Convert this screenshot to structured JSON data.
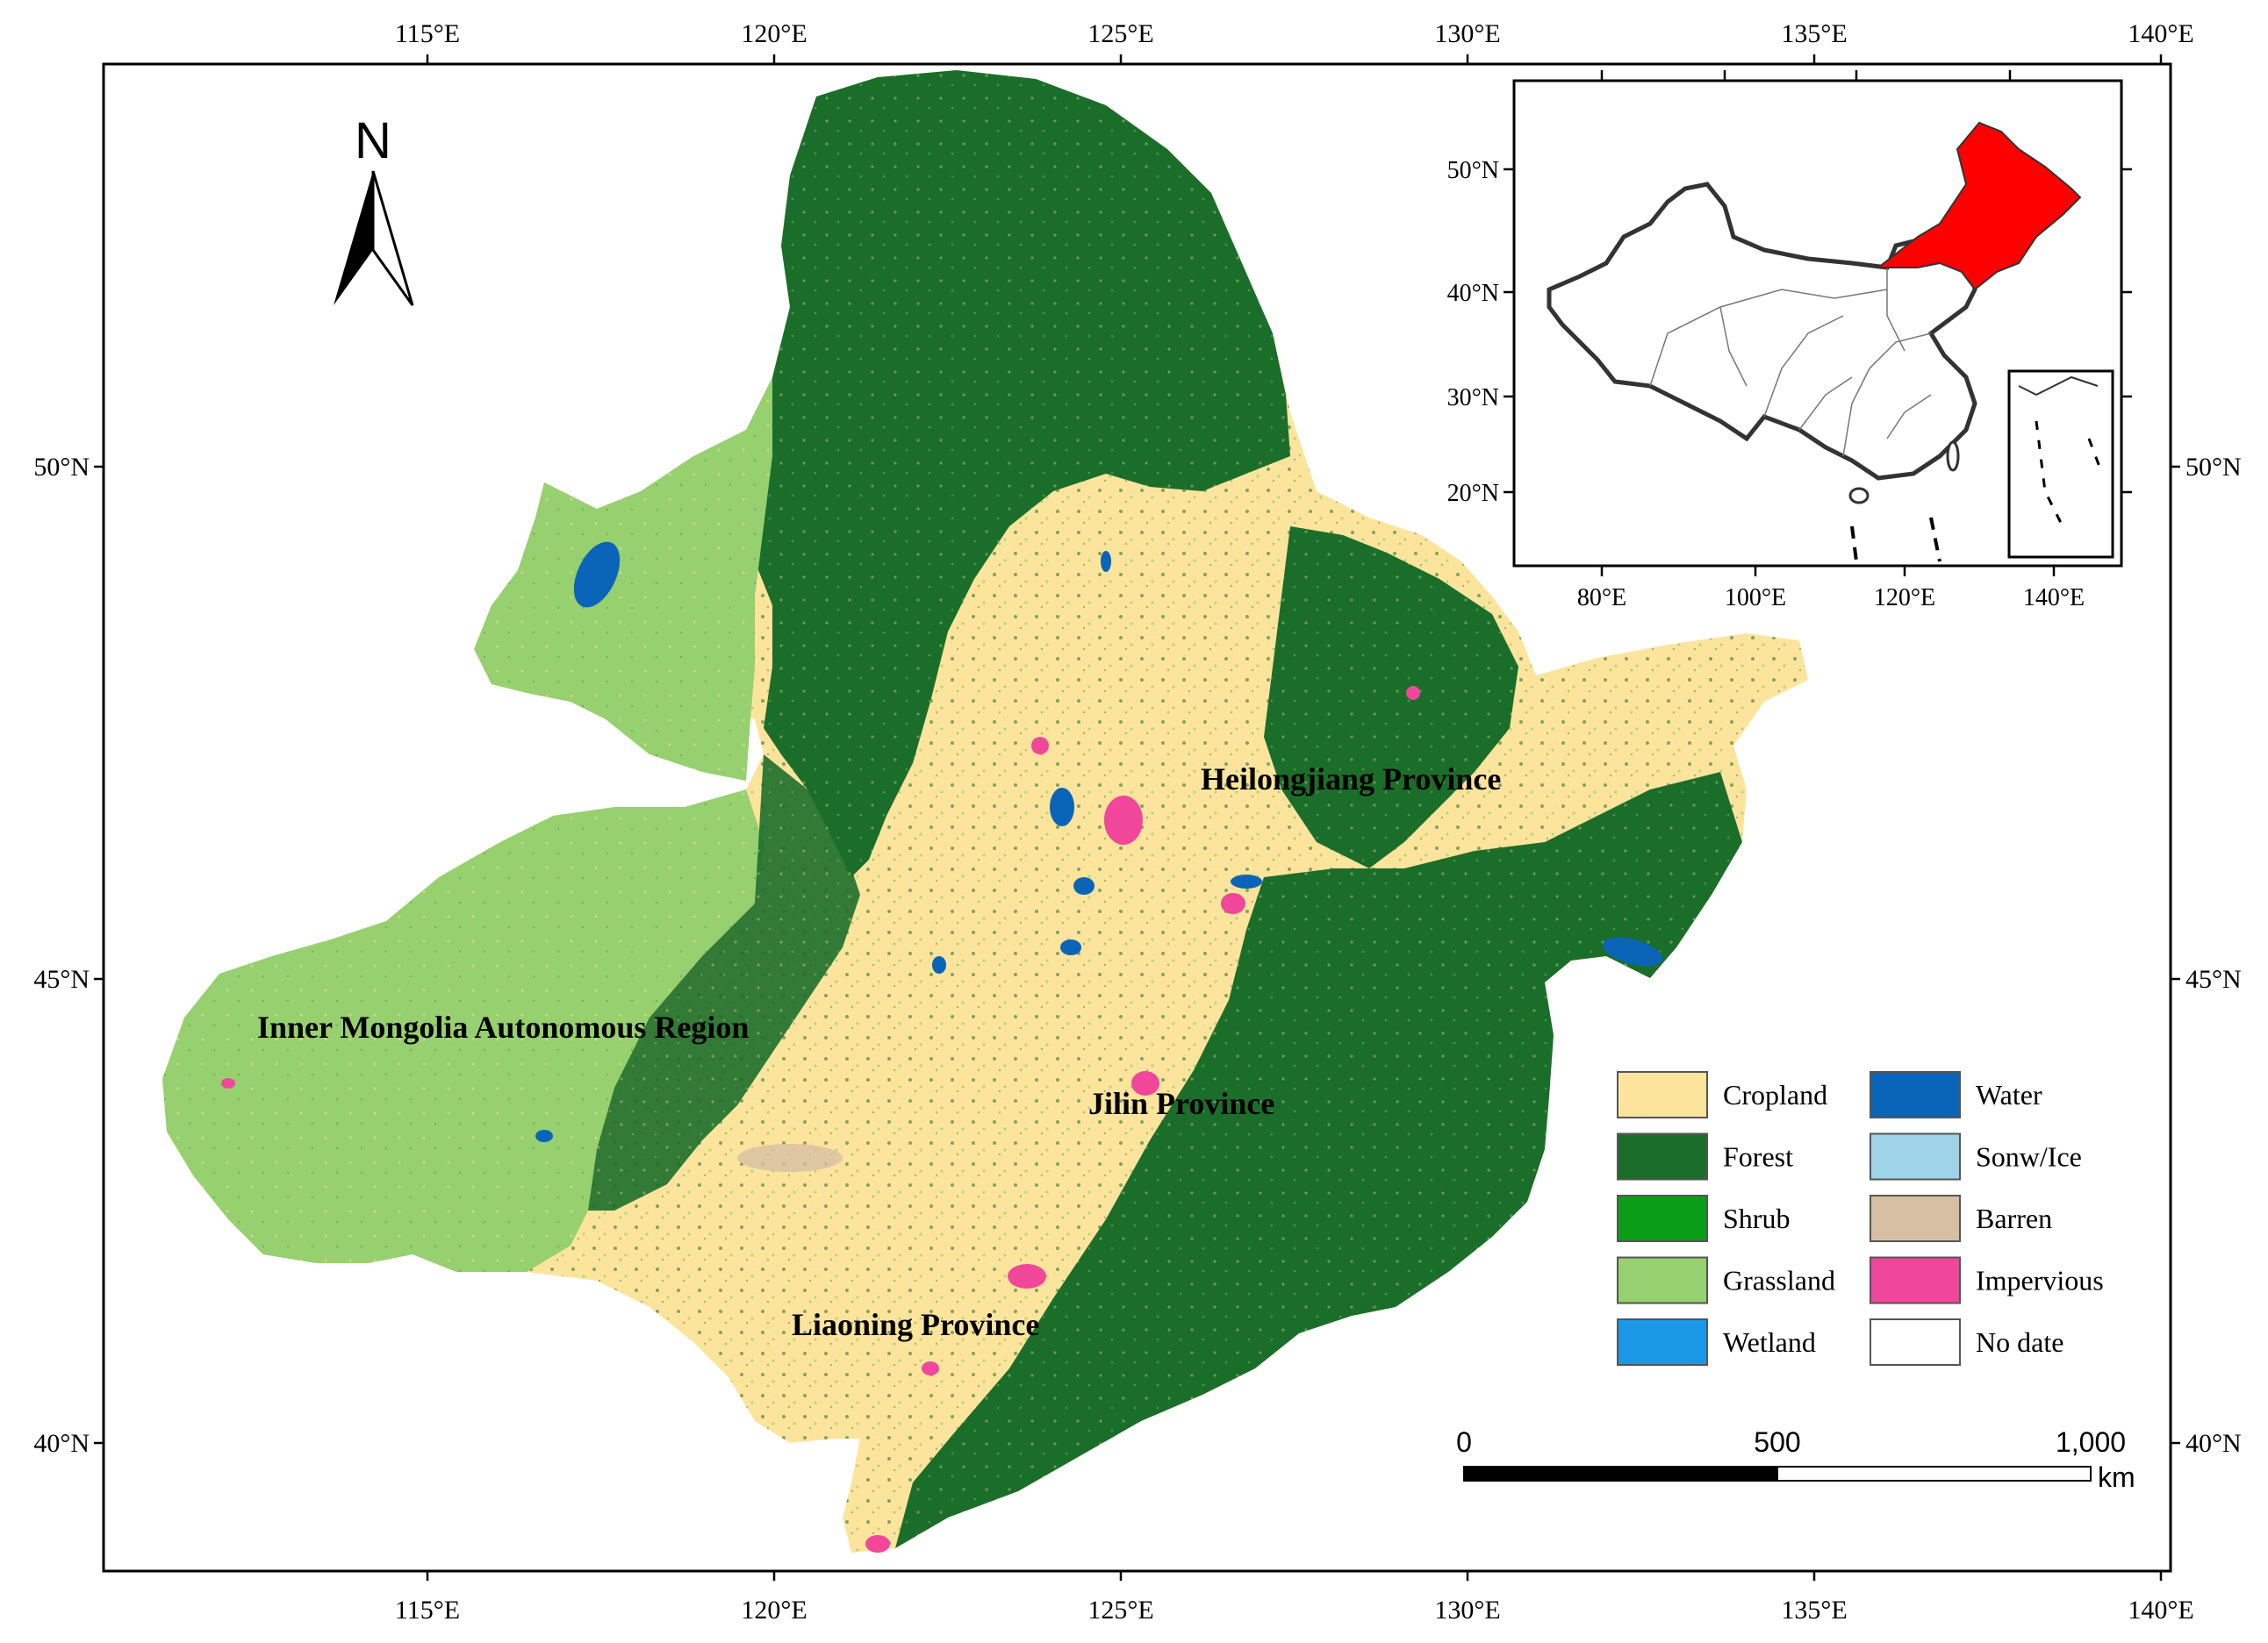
{
  "map": {
    "frame": {
      "top_lon_ticks": [
        "115°E",
        "120°E",
        "125°E",
        "130°E",
        "135°E",
        "140°E"
      ],
      "bottom_lon_ticks": [
        "115°E",
        "120°E",
        "125°E",
        "130°E",
        "135°E",
        "140°E"
      ],
      "left_lat_ticks": [
        "50°N",
        "45°N",
        "40°N"
      ],
      "right_lat_ticks": [
        "50°N",
        "45°N",
        "40°N"
      ]
    },
    "north_arrow": {
      "label": "N"
    },
    "regions": {
      "heilongjiang": "Heilongjiang Province",
      "inner_mongolia": "Inner Mongolia Autonomous Region",
      "jilin": "Jilin Province",
      "liaoning": "Liaoning Province"
    },
    "legend": [
      {
        "label": "Cropland",
        "color": "#FDE49C"
      },
      {
        "label": "Water",
        "color": "#0A64B8"
      },
      {
        "label": "Forest",
        "color": "#1B6E2A"
      },
      {
        "label": "Sonw/Ice",
        "color": "#9FD3E8"
      },
      {
        "label": "Shrub",
        "color": "#0A9E18"
      },
      {
        "label": "Barren",
        "color": "#D6BFA3"
      },
      {
        "label": "Grassland",
        "color": "#97D06F"
      },
      {
        "label": "Impervious",
        "color": "#F0479A"
      },
      {
        "label": "Wetland",
        "color": "#1A98E6"
      },
      {
        "label": "No date",
        "color": "#FFFFFF"
      }
    ],
    "scale_bar": {
      "ticks": [
        "0",
        "500",
        "1,000"
      ],
      "unit": "km"
    },
    "inset": {
      "lat_ticks": [
        "50°N",
        "40°N",
        "30°N",
        "20°N"
      ],
      "lon_ticks": [
        "80°E",
        "100°E",
        "120°E",
        "140°E"
      ],
      "highlight_color": "#FF0000"
    }
  }
}
